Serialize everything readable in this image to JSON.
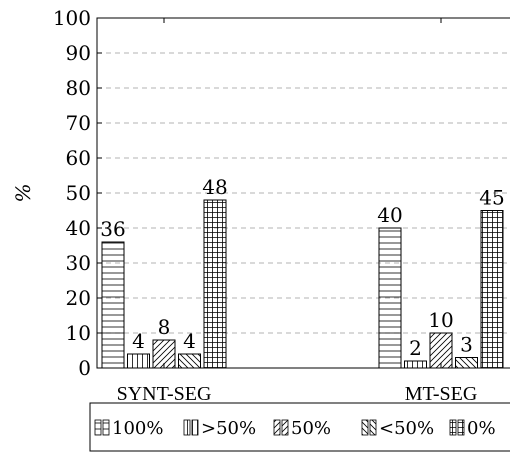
{
  "chart_data": {
    "type": "bar",
    "categories": [
      "SYNT-SEG",
      "MT-SEG"
    ],
    "series": [
      {
        "name": "100%",
        "values": [
          36,
          40
        ],
        "pattern": "horizontal-lines"
      },
      {
        "name": ">50%",
        "values": [
          4,
          2
        ],
        "pattern": "vertical-lines"
      },
      {
        "name": "50%",
        "values": [
          8,
          10
        ],
        "pattern": "north-east-lines"
      },
      {
        "name": "<50%",
        "values": [
          4,
          3
        ],
        "pattern": "north-west-lines"
      },
      {
        "name": "0%",
        "values": [
          48,
          45
        ],
        "pattern": "grid"
      }
    ],
    "ylabel": "%",
    "xlabel": "",
    "ylim": [
      0,
      100
    ],
    "yticks": [
      0,
      10,
      20,
      30,
      40,
      50,
      60,
      70,
      80,
      90,
      100
    ],
    "grid": "horizontal-dashed",
    "legend_position": "bottom"
  }
}
